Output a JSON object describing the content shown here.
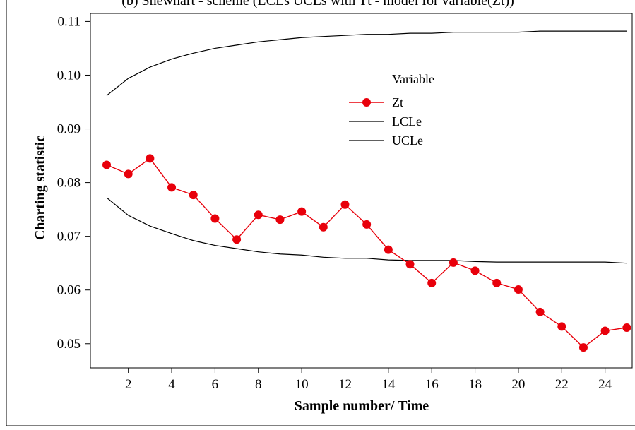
{
  "chart_data": {
    "type": "line",
    "title": "(b) Shewhart - scheme (LCLs UCLs with Tt - model for variable(Zt))",
    "xlabel": "Sample number/ Time",
    "ylabel": "Charting statistic",
    "legend_title": "Variable",
    "legend_position": "top-center",
    "grid": false,
    "x": [
      1,
      2,
      3,
      4,
      5,
      6,
      7,
      8,
      9,
      10,
      11,
      12,
      13,
      14,
      15,
      16,
      17,
      18,
      19,
      20,
      21,
      22,
      23,
      24,
      25
    ],
    "xlim": [
      0.25,
      25.25
    ],
    "ylim": [
      0.0455,
      0.1115
    ],
    "x_ticks": [
      2,
      4,
      6,
      8,
      10,
      12,
      14,
      16,
      18,
      20,
      22,
      24
    ],
    "y_ticks": [
      0.05,
      0.06,
      0.07,
      0.08,
      0.09,
      0.1,
      0.11
    ],
    "y_tick_labels": [
      "0.05",
      "0.06",
      "0.07",
      "0.08",
      "0.09",
      "0.10",
      "0.11"
    ],
    "series": [
      {
        "name": "Zt",
        "color": "#e8000b",
        "marker": "circle",
        "values": [
          0.0833,
          0.0816,
          0.0845,
          0.0791,
          0.0777,
          0.0733,
          0.0694,
          0.074,
          0.0731,
          0.0746,
          0.0717,
          0.0759,
          0.0722,
          0.0675,
          0.0648,
          0.0613,
          0.0651,
          0.0636,
          0.0613,
          0.0601,
          0.0559,
          0.0532,
          0.0493,
          0.0524,
          0.053
        ]
      },
      {
        "name": "LCLe",
        "color": "#000000",
        "marker": "none",
        "values": [
          0.0772,
          0.0739,
          0.0719,
          0.0705,
          0.0692,
          0.0683,
          0.0677,
          0.0671,
          0.0667,
          0.0665,
          0.0661,
          0.0659,
          0.0659,
          0.0656,
          0.0655,
          0.0655,
          0.0655,
          0.0653,
          0.0652,
          0.0652,
          0.0652,
          0.0652,
          0.0652,
          0.0652,
          0.065
        ]
      },
      {
        "name": "UCLe",
        "color": "#000000",
        "marker": "none",
        "values": [
          0.0962,
          0.0994,
          0.1015,
          0.103,
          0.1041,
          0.105,
          0.1056,
          0.1062,
          0.1066,
          0.107,
          0.1072,
          0.1074,
          0.1076,
          0.1076,
          0.1078,
          0.1078,
          0.108,
          0.108,
          0.108,
          0.108,
          0.1082,
          0.1082,
          0.1082,
          0.1082,
          0.1082
        ]
      }
    ]
  }
}
